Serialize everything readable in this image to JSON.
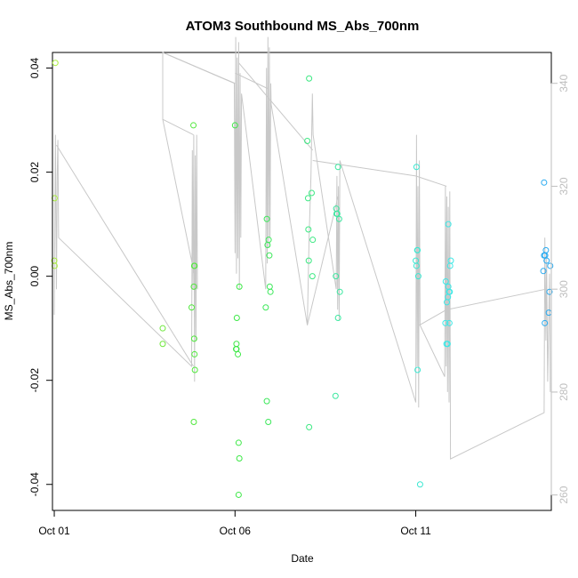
{
  "chart_data": {
    "type": "scatter",
    "title": "ATOM3 Southbound MS_Abs_700nm",
    "xlabel": "Date",
    "ylabel": "MS_Abs_700nm",
    "x_unit": "day of October 2014 (fractional)",
    "xlim": [
      0.95,
      14.75
    ],
    "ylim": [
      -0.045,
      0.043
    ],
    "y_ticks": [
      -0.04,
      -0.02,
      0.0,
      0.02,
      0.04
    ],
    "y_tick_labels": [
      "-0.04",
      "-0.02",
      "0.00",
      "0.02",
      "0.04"
    ],
    "x_ticks": [
      1,
      6,
      11
    ],
    "x_tick_labels": [
      "Oct 01",
      "Oct 06",
      "Oct 11"
    ],
    "secondary_axis": {
      "color": "#bebebe",
      "ylim": [
        257,
        346
      ],
      "ticks": [
        260,
        280,
        300,
        320,
        340
      ],
      "tick_labels": [
        "260",
        "280",
        "300",
        "320",
        "340"
      ]
    },
    "grid": false,
    "series": [
      {
        "marker": "open-circle",
        "color_scale": "time gradient yellow-green to blue",
        "points": [
          {
            "x": 1.03,
            "y": 0.041,
            "c": "#aaf03c"
          },
          {
            "x": 1.01,
            "y": 0.015,
            "c": "#aaf03c"
          },
          {
            "x": 1.0,
            "y": 0.003,
            "c": "#aaf03c"
          },
          {
            "x": 1.01,
            "y": 0.002,
            "c": "#aaf03c"
          },
          {
            "x": 4.0,
            "y": -0.01,
            "c": "#6ee83c"
          },
          {
            "x": 4.0,
            "y": -0.013,
            "c": "#6ee83c"
          },
          {
            "x": 4.85,
            "y": 0.029,
            "c": "#50e83c"
          },
          {
            "x": 4.88,
            "y": 0.002,
            "c": "#50e83c"
          },
          {
            "x": 4.87,
            "y": 0.002,
            "c": "#50e83c"
          },
          {
            "x": 4.86,
            "y": -0.002,
            "c": "#50e83c"
          },
          {
            "x": 4.8,
            "y": -0.006,
            "c": "#50e83c"
          },
          {
            "x": 4.87,
            "y": -0.012,
            "c": "#50e83c"
          },
          {
            "x": 4.88,
            "y": -0.015,
            "c": "#50e83c"
          },
          {
            "x": 4.89,
            "y": -0.018,
            "c": "#50e83c"
          },
          {
            "x": 4.86,
            "y": -0.028,
            "c": "#50e83c"
          },
          {
            "x": 6.0,
            "y": 0.029,
            "c": "#3ce846"
          },
          {
            "x": 6.12,
            "y": -0.002,
            "c": "#3ce846"
          },
          {
            "x": 6.05,
            "y": -0.008,
            "c": "#3ce846"
          },
          {
            "x": 6.04,
            "y": -0.013,
            "c": "#3ce846"
          },
          {
            "x": 6.03,
            "y": -0.014,
            "c": "#3ce846"
          },
          {
            "x": 6.04,
            "y": -0.014,
            "c": "#3ce846"
          },
          {
            "x": 6.08,
            "y": -0.015,
            "c": "#3ce846"
          },
          {
            "x": 6.1,
            "y": -0.032,
            "c": "#3ce846"
          },
          {
            "x": 6.12,
            "y": -0.035,
            "c": "#3ce846"
          },
          {
            "x": 6.1,
            "y": -0.042,
            "c": "#3ce846"
          },
          {
            "x": 6.88,
            "y": 0.011,
            "c": "#3ce85a"
          },
          {
            "x": 6.93,
            "y": 0.007,
            "c": "#3ce85a"
          },
          {
            "x": 6.9,
            "y": 0.006,
            "c": "#3ce85a"
          },
          {
            "x": 6.95,
            "y": 0.004,
            "c": "#3ce85a"
          },
          {
            "x": 6.96,
            "y": -0.002,
            "c": "#3ce85a"
          },
          {
            "x": 6.98,
            "y": -0.003,
            "c": "#3ce85a"
          },
          {
            "x": 6.85,
            "y": -0.006,
            "c": "#3ce85a"
          },
          {
            "x": 6.88,
            "y": -0.024,
            "c": "#3ce85a"
          },
          {
            "x": 6.92,
            "y": -0.028,
            "c": "#3ce85a"
          },
          {
            "x": 8.05,
            "y": 0.038,
            "c": "#3ce882"
          },
          {
            "x": 8.0,
            "y": 0.026,
            "c": "#3ce882"
          },
          {
            "x": 8.12,
            "y": 0.016,
            "c": "#3ce882"
          },
          {
            "x": 8.02,
            "y": 0.015,
            "c": "#3ce882"
          },
          {
            "x": 8.03,
            "y": 0.009,
            "c": "#3ce882"
          },
          {
            "x": 8.15,
            "y": 0.007,
            "c": "#3ce882"
          },
          {
            "x": 8.04,
            "y": 0.003,
            "c": "#3ce882"
          },
          {
            "x": 8.14,
            "y": 0.0,
            "c": "#3ce882"
          },
          {
            "x": 8.05,
            "y": -0.029,
            "c": "#3ce882"
          },
          {
            "x": 8.85,
            "y": 0.021,
            "c": "#3ce8a0"
          },
          {
            "x": 8.8,
            "y": 0.013,
            "c": "#3ce8a0"
          },
          {
            "x": 8.83,
            "y": 0.012,
            "c": "#3ce8a0"
          },
          {
            "x": 8.81,
            "y": 0.012,
            "c": "#3ce8a0"
          },
          {
            "x": 8.88,
            "y": 0.011,
            "c": "#3ce8a0"
          },
          {
            "x": 8.79,
            "y": 0.0,
            "c": "#3ce8a0"
          },
          {
            "x": 8.9,
            "y": -0.003,
            "c": "#3ce8a0"
          },
          {
            "x": 8.85,
            "y": -0.008,
            "c": "#3ce8a0"
          },
          {
            "x": 8.78,
            "y": -0.023,
            "c": "#3ce8a0"
          },
          {
            "x": 11.02,
            "y": 0.021,
            "c": "#3ce8d2"
          },
          {
            "x": 11.05,
            "y": 0.005,
            "c": "#3ce8d2"
          },
          {
            "x": 11.04,
            "y": 0.005,
            "c": "#3ce8d2"
          },
          {
            "x": 11.0,
            "y": 0.003,
            "c": "#3ce8d2"
          },
          {
            "x": 11.02,
            "y": 0.002,
            "c": "#3ce8d2"
          },
          {
            "x": 11.07,
            "y": 0.0,
            "c": "#3ce8d2"
          },
          {
            "x": 11.05,
            "y": -0.018,
            "c": "#3ce8d2"
          },
          {
            "x": 11.12,
            "y": -0.04,
            "c": "#3ce8d2"
          },
          {
            "x": 11.9,
            "y": 0.01,
            "c": "#3ce8e6"
          },
          {
            "x": 11.97,
            "y": 0.003,
            "c": "#3ce8e6"
          },
          {
            "x": 11.95,
            "y": 0.002,
            "c": "#3ce8e6"
          },
          {
            "x": 11.83,
            "y": -0.001,
            "c": "#3ce8e6"
          },
          {
            "x": 11.9,
            "y": -0.002,
            "c": "#3ce8e6"
          },
          {
            "x": 11.92,
            "y": -0.003,
            "c": "#3ce8e6"
          },
          {
            "x": 11.94,
            "y": -0.003,
            "c": "#3ce8e6"
          },
          {
            "x": 11.89,
            "y": -0.004,
            "c": "#3ce8e6"
          },
          {
            "x": 11.86,
            "y": -0.005,
            "c": "#3ce8e6"
          },
          {
            "x": 11.82,
            "y": -0.009,
            "c": "#3ce8e6"
          },
          {
            "x": 11.93,
            "y": -0.009,
            "c": "#3ce8e6"
          },
          {
            "x": 11.85,
            "y": -0.013,
            "c": "#3ce8e6"
          },
          {
            "x": 11.88,
            "y": -0.013,
            "c": "#3ce8e6"
          },
          {
            "x": 14.55,
            "y": 0.018,
            "c": "#28aaf0"
          },
          {
            "x": 14.6,
            "y": 0.005,
            "c": "#28aaf0"
          },
          {
            "x": 14.58,
            "y": 0.004,
            "c": "#28aaf0"
          },
          {
            "x": 14.55,
            "y": 0.004,
            "c": "#28aaf0"
          },
          {
            "x": 14.62,
            "y": 0.003,
            "c": "#28aaf0"
          },
          {
            "x": 14.72,
            "y": 0.002,
            "c": "#28aaf0"
          },
          {
            "x": 14.53,
            "y": 0.001,
            "c": "#28aaf0"
          },
          {
            "x": 14.7,
            "y": -0.003,
            "c": "#28aaf0"
          },
          {
            "x": 14.68,
            "y": -0.007,
            "c": "#28aaf0"
          },
          {
            "x": 14.57,
            "y": -0.009,
            "c": "#28aaf0"
          }
        ]
      },
      {
        "axis": "secondary",
        "style": "line",
        "color": "#c8c8c8",
        "points": [
          [
            1.0,
            295
          ],
          [
            1.03,
            330
          ],
          [
            1.06,
            300
          ],
          [
            1.08,
            322
          ],
          [
            1.1,
            329
          ],
          [
            1.12,
            310
          ],
          [
            4.8,
            285
          ],
          [
            4.82,
            327
          ],
          [
            4.84,
            300
          ],
          [
            4.86,
            330
          ],
          [
            4.88,
            282
          ],
          [
            4.9,
            326
          ],
          [
            4.92,
            290
          ],
          [
            4.94,
            330
          ],
          [
            4.96,
            300
          ],
          [
            4.0,
            333
          ],
          [
            4.0,
            346
          ],
          [
            5.98,
            340
          ],
          [
            6.0,
            307
          ],
          [
            6.02,
            349
          ],
          [
            6.04,
            303
          ],
          [
            6.06,
            345
          ],
          [
            6.08,
            306
          ],
          [
            6.1,
            348
          ],
          [
            6.12,
            300
          ],
          [
            6.14,
            342
          ],
          [
            6.16,
            310
          ],
          [
            6.18,
            338
          ],
          [
            6.85,
            300
          ],
          [
            6.87,
            343
          ],
          [
            6.89,
            305
          ],
          [
            6.91,
            349
          ],
          [
            6.93,
            308
          ],
          [
            6.95,
            347
          ],
          [
            6.97,
            310
          ],
          [
            6.99,
            340
          ],
          [
            7.0,
            336
          ],
          [
            8.0,
            293
          ],
          [
            8.05,
            310
          ],
          [
            8.1,
            322
          ],
          [
            8.14,
            338
          ],
          [
            8.16,
            330
          ],
          [
            8.8,
            300
          ],
          [
            8.82,
            322
          ],
          [
            8.84,
            296
          ],
          [
            8.86,
            320
          ],
          [
            8.88,
            294
          ],
          [
            8.9,
            325
          ],
          [
            11.0,
            278
          ],
          [
            11.02,
            330
          ],
          [
            11.04,
            285
          ],
          [
            11.06,
            320
          ],
          [
            11.08,
            277
          ],
          [
            11.1,
            325
          ],
          [
            11.12,
            293
          ],
          [
            11.8,
            283
          ],
          [
            11.82,
            320
          ],
          [
            11.84,
            285
          ],
          [
            11.86,
            318
          ],
          [
            11.88,
            280
          ],
          [
            11.9,
            316
          ],
          [
            11.92,
            278
          ],
          [
            11.94,
            319
          ],
          [
            11.96,
            267
          ],
          [
            14.55,
            276
          ],
          [
            14.57,
            310
          ],
          [
            14.6,
            290
          ],
          [
            14.62,
            306
          ],
          [
            14.65,
            282
          ],
          [
            14.7,
            303
          ],
          [
            14.72,
            280
          ]
        ],
        "links": [
          [
            [
              1.06,
              328
            ],
            [
              4.85,
              285
            ]
          ],
          [
            [
              4.0,
              346
            ],
            [
              6.0,
              340
            ]
          ],
          [
            [
              4.0,
              333
            ],
            [
              4.85,
              330
            ]
          ],
          [
            [
              6.0,
              342
            ],
            [
              6.9,
              339
            ]
          ],
          [
            [
              6.1,
              344
            ],
            [
              8.15,
              327
            ]
          ],
          [
            [
              8.15,
              325
            ],
            [
              11.0,
              322
            ]
          ],
          [
            [
              11.0,
              322
            ],
            [
              11.85,
              320
            ]
          ],
          [
            [
              8.0,
              293
            ],
            [
              8.85,
              318
            ]
          ],
          [
            [
              11.1,
              293
            ],
            [
              11.85,
              296
            ]
          ],
          [
            [
              11.85,
              296
            ],
            [
              14.6,
              300
            ]
          ]
        ]
      }
    ]
  }
}
